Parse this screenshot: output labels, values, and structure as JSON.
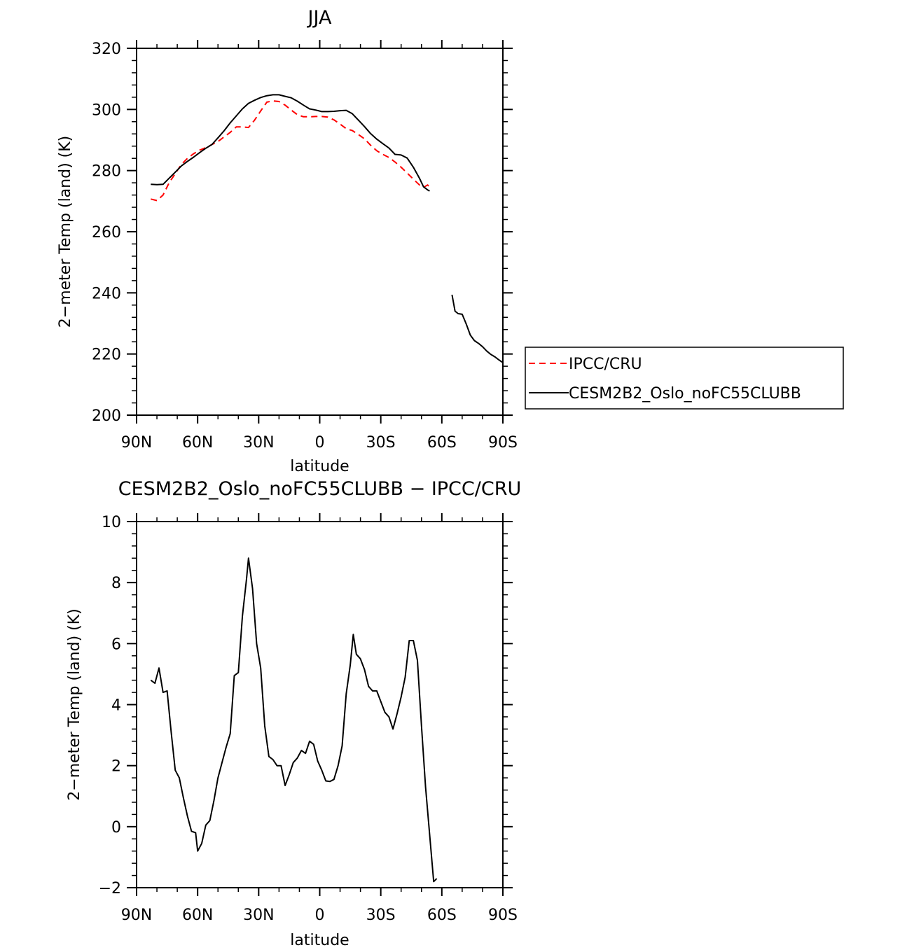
{
  "chart_data": [
    {
      "type": "line",
      "title": "JJA",
      "xlabel": "latitude",
      "ylabel": "2−meter Temp (land) (K)",
      "xlim": [
        90,
        -90
      ],
      "ylim": [
        200,
        320
      ],
      "x_ticks": [
        90,
        60,
        30,
        0,
        -30,
        -60,
        -90
      ],
      "x_tick_labels": [
        "90N",
        "60N",
        "30N",
        "0",
        "30S",
        "60S",
        "90S"
      ],
      "y_ticks": [
        200,
        220,
        240,
        260,
        280,
        300,
        320
      ],
      "y_tick_labels": [
        "200",
        "220",
        "240",
        "260",
        "280",
        "300",
        "320"
      ],
      "legend_position": "right",
      "series": [
        {
          "name": "IPCC/CRU",
          "color": "#ff0000",
          "style": "dashed",
          "segments": [
            [
              [
                83,
                270.7
              ],
              [
                80,
                270.2
              ],
              [
                77,
                272
              ],
              [
                74,
                276
              ],
              [
                71,
                279
              ],
              [
                68,
                282
              ],
              [
                65,
                284
              ],
              [
                62,
                285.5
              ],
              [
                59,
                286.7
              ],
              [
                56,
                287.5
              ],
              [
                53,
                288.5
              ],
              [
                50,
                289.5
              ],
              [
                47,
                291
              ],
              [
                44,
                292.5
              ],
              [
                41,
                294.3
              ],
              [
                38,
                294.3
              ],
              [
                35,
                294.1
              ],
              [
                32,
                296.5
              ],
              [
                29,
                299.5
              ],
              [
                26,
                302.4
              ],
              [
                23,
                302.8
              ],
              [
                20,
                302.6
              ],
              [
                17,
                301.4
              ],
              [
                14,
                299.8
              ],
              [
                11,
                298.3
              ],
              [
                8,
                297.6
              ],
              [
                5,
                297.6
              ],
              [
                2,
                297.7
              ],
              [
                -1,
                297.7
              ],
              [
                -4,
                297.5
              ],
              [
                -7,
                296.6
              ],
              [
                -10,
                295.2
              ],
              [
                -13,
                293.7
              ],
              [
                -16,
                293.1
              ],
              [
                -19,
                291.8
              ],
              [
                -22,
                290.4
              ],
              [
                -25,
                288.3
              ],
              [
                -28,
                286.5
              ],
              [
                -31,
                285.3
              ],
              [
                -34,
                284.3
              ],
              [
                -37,
                282.8
              ],
              [
                -40,
                281.1
              ],
              [
                -43,
                279.2
              ],
              [
                -46,
                277.2
              ],
              [
                -49,
                275.3
              ],
              [
                -51,
                274.5
              ],
              [
                -53,
                275.3
              ],
              [
                -54,
                274.6
              ]
            ]
          ]
        },
        {
          "name": "CESM2B2_Oslo_noFC55CLUBB",
          "color": "#000000",
          "style": "solid",
          "segments": [
            [
              [
                83,
                275.5
              ],
              [
                80,
                275.4
              ],
              [
                77,
                275.5
              ],
              [
                74,
                277.5
              ],
              [
                71,
                279.5
              ],
              [
                68,
                281.5
              ],
              [
                65,
                283
              ],
              [
                62,
                284.4
              ],
              [
                59,
                285.9
              ],
              [
                56,
                287.3
              ],
              [
                53,
                288.5
              ],
              [
                50,
                290.7
              ],
              [
                47,
                293
              ],
              [
                44,
                295.6
              ],
              [
                41,
                297.9
              ],
              [
                38,
                300.2
              ],
              [
                35,
                302
              ],
              [
                32,
                303
              ],
              [
                29,
                303.9
              ],
              [
                26,
                304.5
              ],
              [
                23,
                304.8
              ],
              [
                20,
                304.8
              ],
              [
                17,
                304.3
              ],
              [
                14,
                303.8
              ],
              [
                11,
                302.7
              ],
              [
                8,
                301.4
              ],
              [
                5,
                300.2
              ],
              [
                2,
                299.8
              ],
              [
                -1,
                299.3
              ],
              [
                -4,
                299.3
              ],
              [
                -7,
                299.4
              ],
              [
                -10,
                299.6
              ],
              [
                -13,
                299.7
              ],
              [
                -16,
                298.6
              ],
              [
                -19,
                296.5
              ],
              [
                -22,
                294.4
              ],
              [
                -25,
                292.1
              ],
              [
                -28,
                290.3
              ],
              [
                -31,
                288.8
              ],
              [
                -34,
                287.4
              ],
              [
                -37,
                285.3
              ],
              [
                -40,
                285.1
              ],
              [
                -43,
                284.1
              ],
              [
                -46,
                281.1
              ],
              [
                -49,
                277.5
              ],
              [
                -51,
                274.7
              ],
              [
                -53,
                273.7
              ],
              [
                -54,
                273.3
              ]
            ],
            [
              [
                -65,
                239.4
              ],
              [
                -66.5,
                234
              ],
              [
                -68,
                233.2
              ],
              [
                -70,
                233
              ],
              [
                -72,
                229.8
              ],
              [
                -74,
                226.2
              ],
              [
                -76,
                224.4
              ],
              [
                -78,
                223.5
              ],
              [
                -80,
                222.4
              ],
              [
                -82,
                221
              ],
              [
                -84,
                219.9
              ],
              [
                -86,
                219.1
              ],
              [
                -88,
                218.1
              ],
              [
                -90,
                217.2
              ]
            ]
          ]
        }
      ]
    },
    {
      "type": "line",
      "title": "CESM2B2_Oslo_noFC55CLUBB − IPCC/CRU",
      "xlabel": "latitude",
      "ylabel": "2−meter Temp (land) (K)",
      "xlim": [
        90,
        -90
      ],
      "ylim": [
        -2,
        10
      ],
      "x_ticks": [
        90,
        60,
        30,
        0,
        -30,
        -60,
        -90
      ],
      "x_tick_labels": [
        "90N",
        "60N",
        "30N",
        "0",
        "30S",
        "60S",
        "90S"
      ],
      "y_ticks": [
        -2,
        0,
        2,
        4,
        6,
        8,
        10
      ],
      "y_tick_labels": [
        "−2",
        "0",
        "2",
        "4",
        "6",
        "8",
        "10"
      ],
      "series": [
        {
          "color": "#000000",
          "style": "solid",
          "segments": [
            [
              [
                83,
                4.8
              ],
              [
                81,
                4.7
              ],
              [
                79,
                5.2
              ],
              [
                77,
                4.4
              ],
              [
                75,
                4.45
              ],
              [
                73,
                3.1
              ],
              [
                71,
                1.85
              ],
              [
                69,
                1.6
              ],
              [
                67,
                0.95
              ],
              [
                65,
                0.35
              ],
              [
                63,
                -0.15
              ],
              [
                61,
                -0.2
              ],
              [
                60,
                -0.8
              ],
              [
                58,
                -0.55
              ],
              [
                56,
                0.05
              ],
              [
                54,
                0.2
              ],
              [
                52,
                0.85
              ],
              [
                50,
                1.6
              ],
              [
                48,
                2.1
              ],
              [
                46,
                2.6
              ],
              [
                44,
                3.05
              ],
              [
                42,
                4.95
              ],
              [
                40,
                5.05
              ],
              [
                38,
                6.9
              ],
              [
                36,
                8.1
              ],
              [
                35,
                8.8
              ],
              [
                33,
                7.8
              ],
              [
                31,
                6
              ],
              [
                29,
                5.2
              ],
              [
                27,
                3.3
              ],
              [
                25,
                2.3
              ],
              [
                23,
                2.2
              ],
              [
                21,
                2.0
              ],
              [
                19,
                2.0
              ],
              [
                17,
                1.35
              ],
              [
                15,
                1.7
              ],
              [
                13,
                2.1
              ],
              [
                11,
                2.25
              ],
              [
                9,
                2.5
              ],
              [
                7,
                2.4
              ],
              [
                5,
                2.8
              ],
              [
                3,
                2.7
              ],
              [
                1,
                2.15
              ],
              [
                -1,
                1.85
              ],
              [
                -3,
                1.5
              ],
              [
                -5,
                1.48
              ],
              [
                -7,
                1.55
              ],
              [
                -9,
                2.0
              ],
              [
                -11,
                2.65
              ],
              [
                -13,
                4.35
              ],
              [
                -15,
                5.3
              ],
              [
                -16.5,
                6.3
              ],
              [
                -18,
                5.65
              ],
              [
                -20,
                5.5
              ],
              [
                -22,
                5.15
              ],
              [
                -24,
                4.6
              ],
              [
                -26,
                4.45
              ],
              [
                -28,
                4.45
              ],
              [
                -30,
                4.1
              ],
              [
                -32,
                3.75
              ],
              [
                -34,
                3.6
              ],
              [
                -36,
                3.2
              ],
              [
                -38,
                3.7
              ],
              [
                -40,
                4.25
              ],
              [
                -42,
                4.9
              ],
              [
                -44,
                6.1
              ],
              [
                -46,
                6.1
              ],
              [
                -48,
                5.45
              ],
              [
                -50,
                3.3
              ],
              [
                -52,
                1.3
              ],
              [
                -54,
                -0.25
              ],
              [
                -56,
                -1.8
              ],
              [
                -57.5,
                -1.7
              ]
            ]
          ]
        }
      ]
    }
  ]
}
